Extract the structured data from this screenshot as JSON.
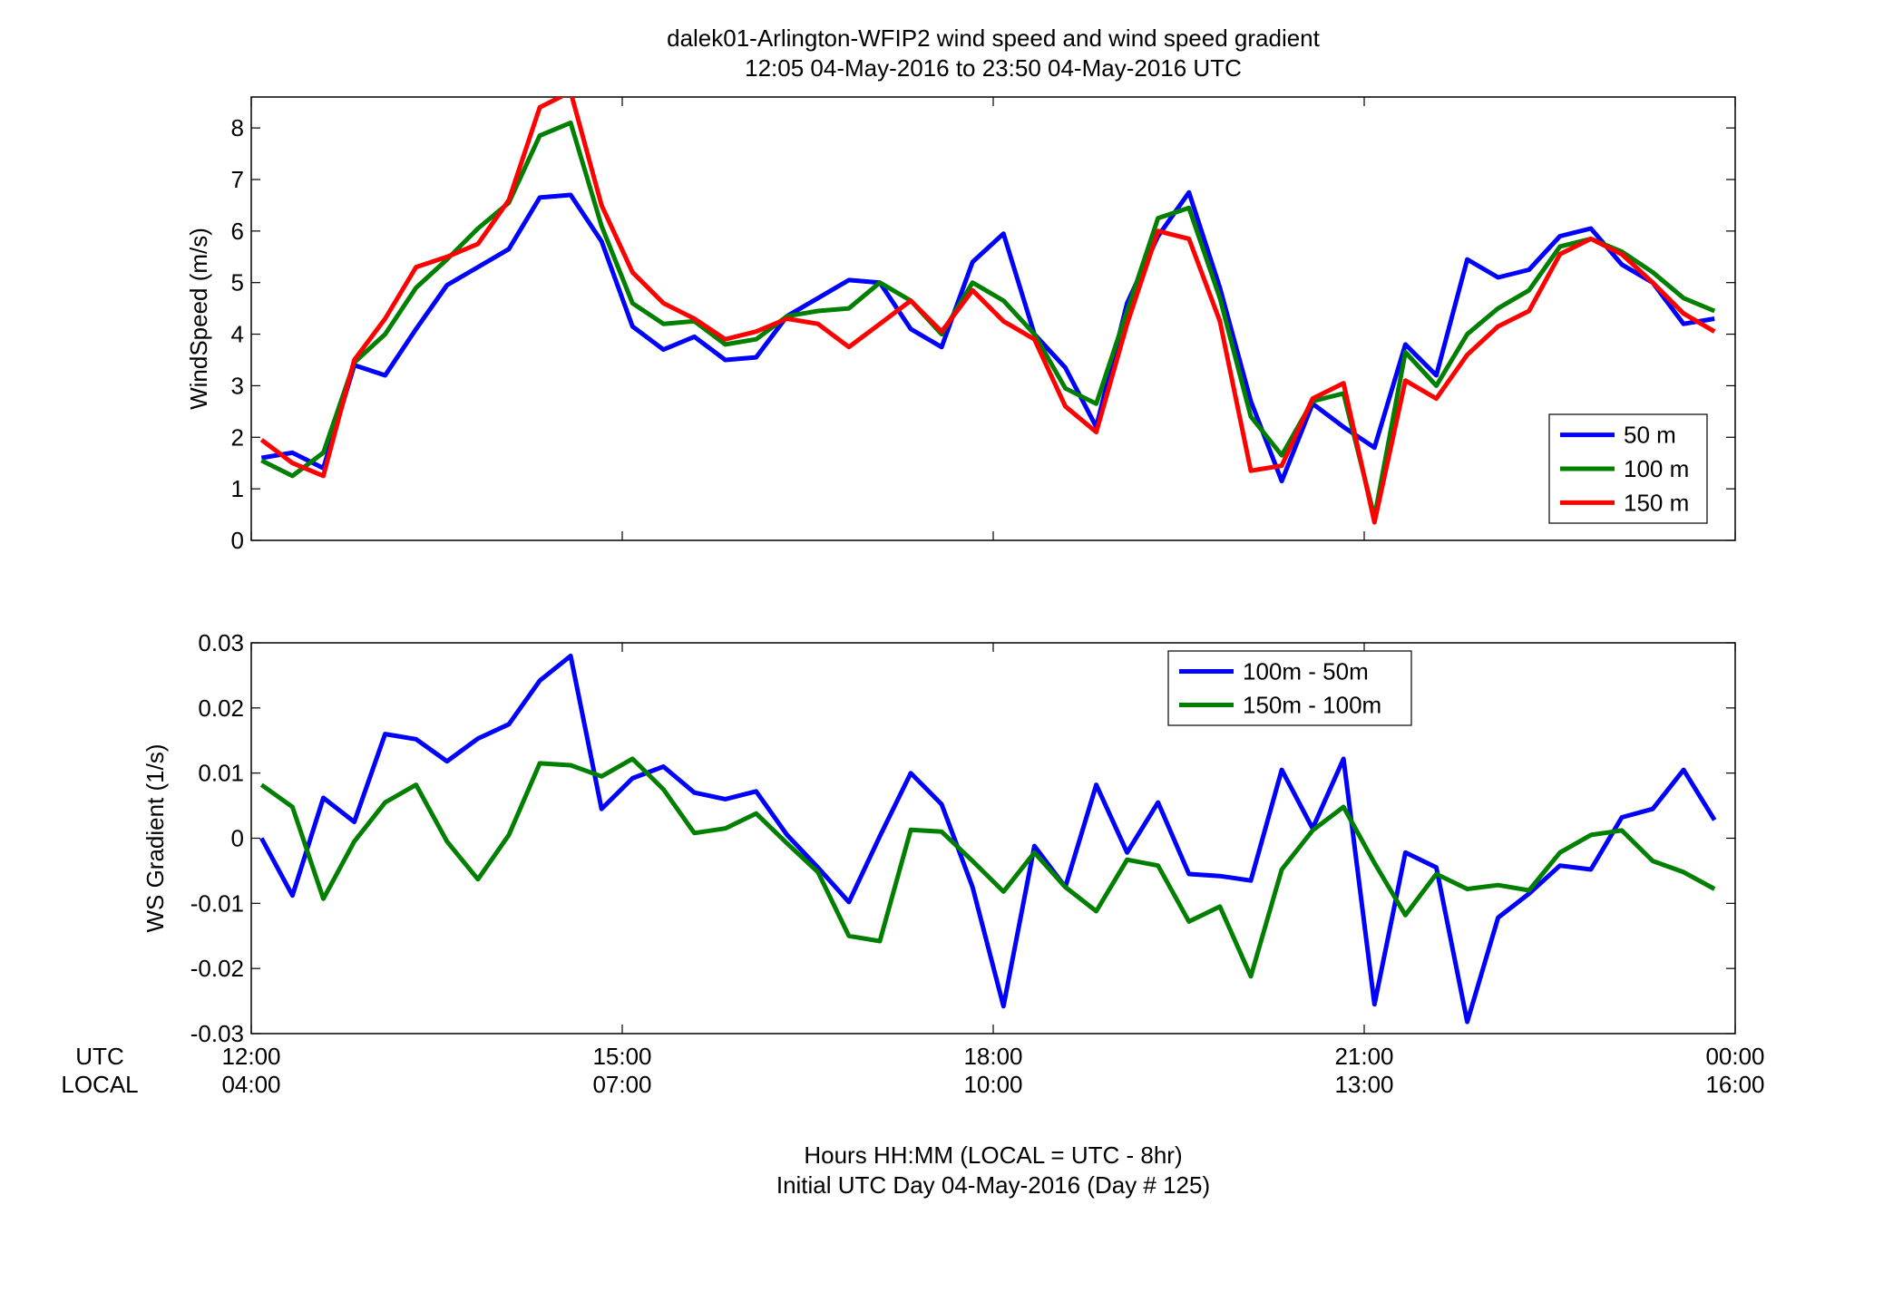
{
  "figure": {
    "title_line1": "dalek01-Arlington-WFIP2  wind speed and wind speed gradient",
    "title_line2": "12:05 04-May-2016 to 23:50 04-May-2016  UTC",
    "utc_row_label": "UTC",
    "local_row_label": "LOCAL",
    "xtick_utc": [
      "12:00",
      "15:00",
      "18:00",
      "21:00",
      "00:00"
    ],
    "xtick_local": [
      "04:00",
      "07:00",
      "10:00",
      "13:00",
      "16:00"
    ],
    "footer_line1": "Hours HH:MM  (LOCAL = UTC - 8hr)",
    "footer_line2": "Initial UTC Day 04-May-2016 (Day # 125)"
  },
  "chart_data": [
    {
      "type": "line",
      "ylabel": "WindSpeed (m/s)",
      "xlabel": "",
      "x_unit": "hours UTC",
      "xlim": [
        12,
        24
      ],
      "ylim": [
        0,
        8.6
      ],
      "yticks": [
        0,
        1,
        2,
        3,
        4,
        5,
        6,
        7,
        8
      ],
      "ytick_labels": [
        "0",
        "1",
        "2",
        "3",
        "4",
        "5",
        "6",
        "7",
        "8"
      ],
      "grid": false,
      "legend_position": "bottom-right",
      "x": [
        12.083,
        12.333,
        12.583,
        12.833,
        13.083,
        13.333,
        13.583,
        13.833,
        14.083,
        14.333,
        14.583,
        14.833,
        15.083,
        15.333,
        15.583,
        15.833,
        16.083,
        16.333,
        16.583,
        16.833,
        17.083,
        17.333,
        17.583,
        17.833,
        18.083,
        18.333,
        18.583,
        18.833,
        19.083,
        19.333,
        19.583,
        19.833,
        20.083,
        20.333,
        20.583,
        20.833,
        21.083,
        21.333,
        21.583,
        21.833,
        22.083,
        22.333,
        22.583,
        22.833,
        23.083,
        23.333,
        23.583,
        23.833
      ],
      "series": [
        {
          "name": "50 m",
          "color": "#0000ff",
          "values": [
            1.6,
            1.7,
            1.4,
            3.4,
            3.2,
            4.1,
            4.95,
            5.3,
            5.65,
            6.65,
            6.7,
            5.8,
            4.15,
            3.7,
            3.95,
            3.5,
            3.55,
            4.35,
            4.7,
            5.05,
            5.0,
            4.1,
            3.75,
            5.4,
            5.95,
            4.0,
            3.35,
            2.2,
            4.6,
            5.9,
            6.75,
            4.9,
            2.7,
            1.15,
            2.65,
            2.2,
            1.8,
            3.8,
            3.2,
            5.45,
            5.1,
            5.25,
            5.9,
            6.05,
            5.35,
            5.0,
            4.2,
            4.3
          ]
        },
        {
          "name": "100 m",
          "color": "#007f00",
          "values": [
            1.55,
            1.25,
            1.7,
            3.45,
            4.0,
            4.9,
            5.45,
            6.05,
            6.55,
            7.85,
            8.1,
            6.1,
            4.6,
            4.2,
            4.25,
            3.8,
            3.9,
            4.35,
            4.45,
            4.5,
            5.0,
            4.65,
            4.0,
            5.0,
            4.65,
            4.0,
            2.95,
            2.65,
            4.45,
            6.25,
            6.45,
            4.7,
            2.4,
            1.65,
            2.7,
            2.85,
            0.45,
            3.65,
            3.0,
            4.0,
            4.5,
            4.85,
            5.7,
            5.85,
            5.6,
            5.2,
            4.7,
            4.45
          ]
        },
        {
          "name": "150 m",
          "color": "#ff0000",
          "values": [
            1.95,
            1.5,
            1.25,
            3.5,
            4.3,
            5.3,
            5.5,
            5.75,
            6.6,
            8.4,
            8.7,
            6.5,
            5.2,
            4.6,
            4.3,
            3.9,
            4.05,
            4.3,
            4.2,
            3.75,
            4.2,
            4.65,
            4.05,
            4.85,
            4.25,
            3.9,
            2.6,
            2.1,
            4.2,
            6.0,
            5.85,
            4.25,
            1.35,
            1.45,
            2.75,
            3.05,
            0.35,
            3.1,
            2.75,
            3.6,
            4.15,
            4.45,
            5.55,
            5.85,
            5.55,
            5.0,
            4.4,
            4.05
          ]
        }
      ]
    },
    {
      "type": "line",
      "ylabel": "WS Gradient (1/s)",
      "xlabel": "",
      "x_unit": "hours UTC",
      "xlim": [
        12,
        24
      ],
      "ylim": [
        -0.03,
        0.03
      ],
      "yticks": [
        -0.03,
        -0.02,
        -0.01,
        0,
        0.01,
        0.02,
        0.03
      ],
      "ytick_labels": [
        "-0.03",
        "-0.02",
        "-0.01",
        "0",
        "0.01",
        "0.02",
        "0.03"
      ],
      "grid": false,
      "legend_position": "top-right",
      "x": [
        12.083,
        12.333,
        12.583,
        12.833,
        13.083,
        13.333,
        13.583,
        13.833,
        14.083,
        14.333,
        14.583,
        14.833,
        15.083,
        15.333,
        15.583,
        15.833,
        16.083,
        16.333,
        16.583,
        16.833,
        17.083,
        17.333,
        17.583,
        17.833,
        18.083,
        18.333,
        18.583,
        18.833,
        19.083,
        19.333,
        19.583,
        19.833,
        20.083,
        20.333,
        20.583,
        20.833,
        21.083,
        21.333,
        21.583,
        21.833,
        22.083,
        22.333,
        22.583,
        22.833,
        23.083,
        23.333,
        23.583,
        23.833
      ],
      "series": [
        {
          "name": "100m - 50m",
          "color": "#0000ff",
          "values": [
            0.0,
            -0.0088,
            0.0062,
            0.0025,
            0.016,
            0.0152,
            0.0118,
            0.0153,
            0.0175,
            0.0242,
            0.028,
            0.0045,
            0.0092,
            0.011,
            0.007,
            0.006,
            0.0072,
            0.0005,
            -0.0045,
            -0.0098,
            0.0003,
            0.01,
            0.0052,
            -0.0075,
            -0.0258,
            -0.0012,
            -0.0075,
            0.0082,
            -0.0022,
            0.0055,
            -0.0055,
            -0.0058,
            -0.0065,
            0.0105,
            0.0015,
            0.0122,
            -0.0255,
            -0.0022,
            -0.0045,
            -0.0282,
            -0.0122,
            -0.0085,
            -0.0042,
            -0.0048,
            0.0032,
            0.0045,
            0.0105,
            0.0028
          ]
        },
        {
          "name": "150m - 100m",
          "color": "#007f00",
          "values": [
            0.0082,
            0.0048,
            -0.0093,
            -0.0005,
            0.0055,
            0.0082,
            -0.0005,
            -0.0063,
            0.0005,
            0.0115,
            0.0112,
            0.0095,
            0.0122,
            0.0075,
            0.0008,
            0.0015,
            0.0038,
            -0.0008,
            -0.0052,
            -0.015,
            -0.0158,
            0.0013,
            0.001,
            -0.0035,
            -0.0082,
            -0.0022,
            -0.0075,
            -0.0112,
            -0.0033,
            -0.0042,
            -0.0128,
            -0.0105,
            -0.0212,
            -0.0048,
            0.0012,
            0.0048,
            -0.0038,
            -0.0118,
            -0.0055,
            -0.0078,
            -0.0072,
            -0.008,
            -0.0022,
            0.0005,
            0.0012,
            -0.0035,
            -0.0052,
            -0.0078
          ]
        }
      ]
    }
  ]
}
